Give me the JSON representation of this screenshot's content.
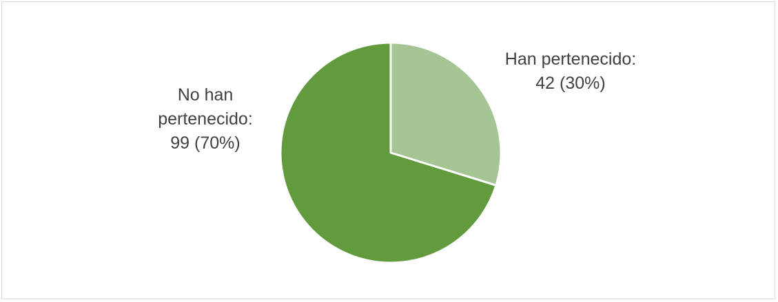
{
  "chart_data": {
    "type": "pie",
    "title": "",
    "slices": [
      {
        "label_line1": "Han pertenecido:",
        "label_line2": "42 (30%)",
        "value": 42,
        "percent": 30,
        "color": "#a5c594"
      },
      {
        "label_line1": "No han",
        "label_line2": "pertenecido:",
        "label_line3": "99 (70%)",
        "value": 99,
        "percent": 70,
        "color": "#629a3e"
      }
    ],
    "slice_border_color": "#ffffff",
    "label_color": "#404040",
    "legend": "none"
  }
}
